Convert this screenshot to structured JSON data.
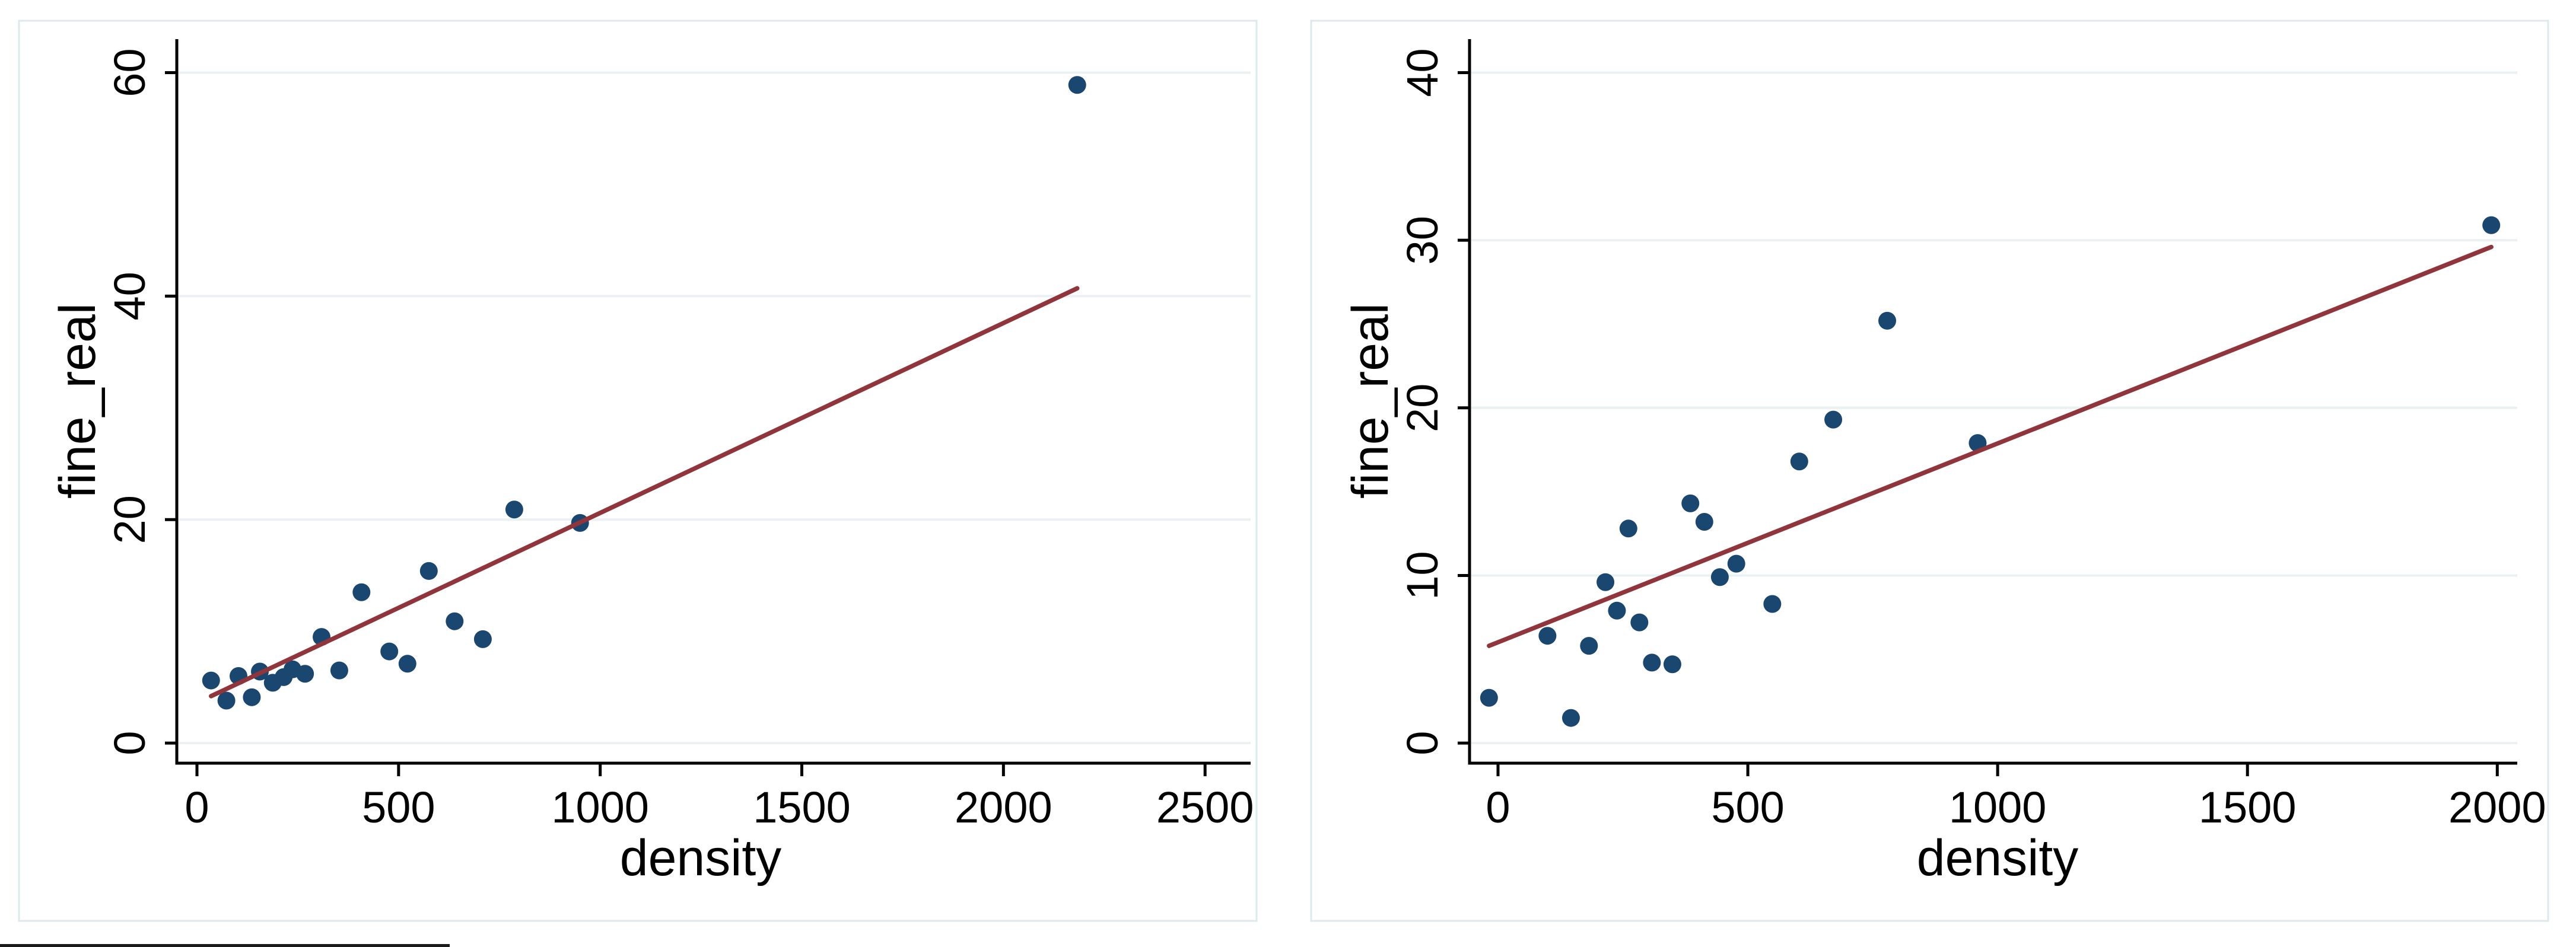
{
  "figure": {
    "description": "Two side-by-side scatter plots of fine_real versus density with linear fit lines",
    "style": {
      "background_color": "#ffffff",
      "panel_border_color": "#dde9eb",
      "grid_color": "#e9f1f3",
      "axis_color": "#000000",
      "dot_color": "#1a476f",
      "fit_line_color": "#90353b",
      "text_color": "#000000",
      "edge_artifact_color": "#1b1b1b"
    }
  },
  "chart_data": [
    {
      "type": "scatter",
      "title": "",
      "xlabel": "density",
      "ylabel": "fine_real",
      "x_ticks": [
        0,
        500,
        1000,
        1500,
        2000,
        2500
      ],
      "y_ticks": [
        0,
        20,
        40,
        60
      ],
      "xlim": [
        -50,
        2613
      ],
      "ylim": [
        -1.8,
        63
      ],
      "grid": "horizontal",
      "legend": "none",
      "points": [
        {
          "x": 35,
          "y": 5.6
        },
        {
          "x": 73,
          "y": 3.8
        },
        {
          "x": 103,
          "y": 6.0
        },
        {
          "x": 136,
          "y": 4.1
        },
        {
          "x": 156,
          "y": 6.4
        },
        {
          "x": 188,
          "y": 5.4
        },
        {
          "x": 215,
          "y": 5.9
        },
        {
          "x": 237,
          "y": 6.6
        },
        {
          "x": 268,
          "y": 6.2
        },
        {
          "x": 309,
          "y": 9.5
        },
        {
          "x": 353,
          "y": 6.5
        },
        {
          "x": 408,
          "y": 13.5
        },
        {
          "x": 477,
          "y": 8.2
        },
        {
          "x": 522,
          "y": 7.1
        },
        {
          "x": 575,
          "y": 15.4
        },
        {
          "x": 639,
          "y": 10.9
        },
        {
          "x": 709,
          "y": 9.3
        },
        {
          "x": 787,
          "y": 20.9
        },
        {
          "x": 950,
          "y": 19.7
        },
        {
          "x": 2183,
          "y": 58.9
        }
      ],
      "fit_line": {
        "x1": 35,
        "y1": 4.2,
        "x2": 2183,
        "y2": 40.7
      }
    },
    {
      "type": "scatter",
      "title": "",
      "xlabel": "density",
      "ylabel": "fine_real",
      "x_ticks": [
        0,
        500,
        1000,
        1500,
        2000
      ],
      "y_ticks": [
        0,
        10,
        20,
        30,
        40
      ],
      "xlim": [
        -57,
        2040
      ],
      "ylim": [
        -1.2,
        42
      ],
      "grid": "horizontal",
      "legend": "none",
      "points": [
        {
          "x": -18,
          "y": 2.7
        },
        {
          "x": 99,
          "y": 6.4
        },
        {
          "x": 146,
          "y": 1.5
        },
        {
          "x": 182,
          "y": 5.8
        },
        {
          "x": 215,
          "y": 9.6
        },
        {
          "x": 238,
          "y": 7.9
        },
        {
          "x": 261,
          "y": 12.8
        },
        {
          "x": 283,
          "y": 7.2
        },
        {
          "x": 308,
          "y": 4.8
        },
        {
          "x": 349,
          "y": 4.7
        },
        {
          "x": 385,
          "y": 14.3
        },
        {
          "x": 413,
          "y": 13.2
        },
        {
          "x": 444,
          "y": 9.9
        },
        {
          "x": 477,
          "y": 10.7
        },
        {
          "x": 549,
          "y": 8.3
        },
        {
          "x": 603,
          "y": 16.8
        },
        {
          "x": 671,
          "y": 19.3
        },
        {
          "x": 779,
          "y": 25.2
        },
        {
          "x": 960,
          "y": 17.9
        },
        {
          "x": 1988,
          "y": 30.9
        }
      ],
      "fit_line": {
        "x1": -18,
        "y1": 5.8,
        "x2": 1988,
        "y2": 29.6
      }
    }
  ]
}
